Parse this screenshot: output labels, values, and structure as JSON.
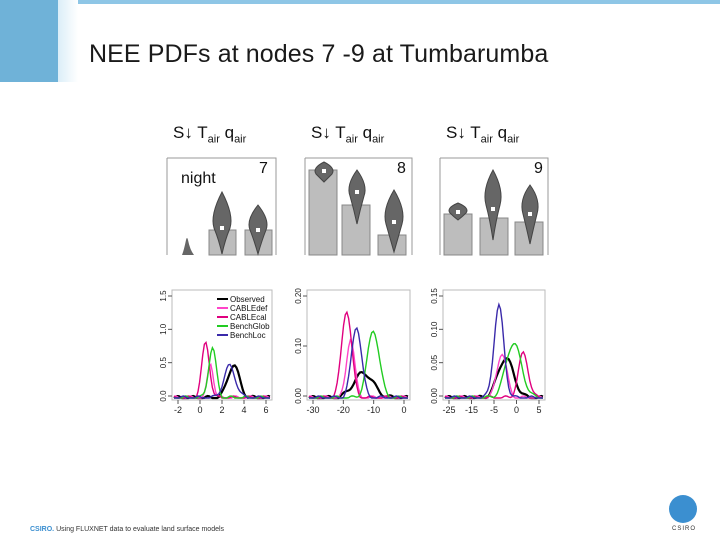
{
  "slide": {
    "title": "NEE PDFs at nodes 7 -9 at Tumbarumba",
    "footer_brand": "CSIRO.",
    "footer_text": "Using FLUXNET data to evaluate land surface models",
    "logo_text": "CSIRO"
  },
  "panels": [
    {
      "header": "S↓ T",
      "sub1": "air",
      "q": " q",
      "sub2": "air",
      "node": "7",
      "note": "night"
    },
    {
      "header": "S↓ T",
      "sub1": "air",
      "q": " q",
      "sub2": "air",
      "node": "8",
      "note": ""
    },
    {
      "header": "S↓ T",
      "sub1": "air",
      "q": " q",
      "sub2": "air",
      "node": "9",
      "note": ""
    }
  ],
  "chart_data": [
    {
      "type": "line",
      "legend": [
        "Observed",
        "CABLEdef",
        "CABLEcal",
        "BenchGlob",
        "BenchLoc"
      ],
      "x_ticks": [
        "-2",
        "0",
        "2",
        "4",
        "6"
      ],
      "y_ticks": [
        "0.0",
        "0.5",
        "1.0",
        "1.5"
      ],
      "xlim": [
        -3,
        7
      ],
      "ylim": [
        0,
        1.6
      ]
    },
    {
      "type": "line",
      "x_ticks": [
        "-30",
        "-20",
        "-10",
        "0"
      ],
      "y_ticks": [
        "0.00",
        "0.10",
        "0.20"
      ],
      "xlim": [
        -35,
        5
      ],
      "ylim": [
        0,
        0.22
      ]
    },
    {
      "type": "line",
      "x_ticks": [
        "-25",
        "-15",
        "-5",
        "0",
        "5"
      ],
      "y_ticks": [
        "0.00",
        "0.05",
        "0.10",
        "0.15"
      ],
      "xlim": [
        -27,
        6
      ],
      "ylim": [
        0,
        0.17
      ]
    }
  ],
  "colors": {
    "observed": "#000000",
    "cable_def": "#ff44c8",
    "cable_cal": "#e0007f",
    "bench_glob": "#22cc22",
    "bench_loc": "#3a2aaa",
    "bar": "#bdbdbd",
    "violin": "#666666"
  }
}
